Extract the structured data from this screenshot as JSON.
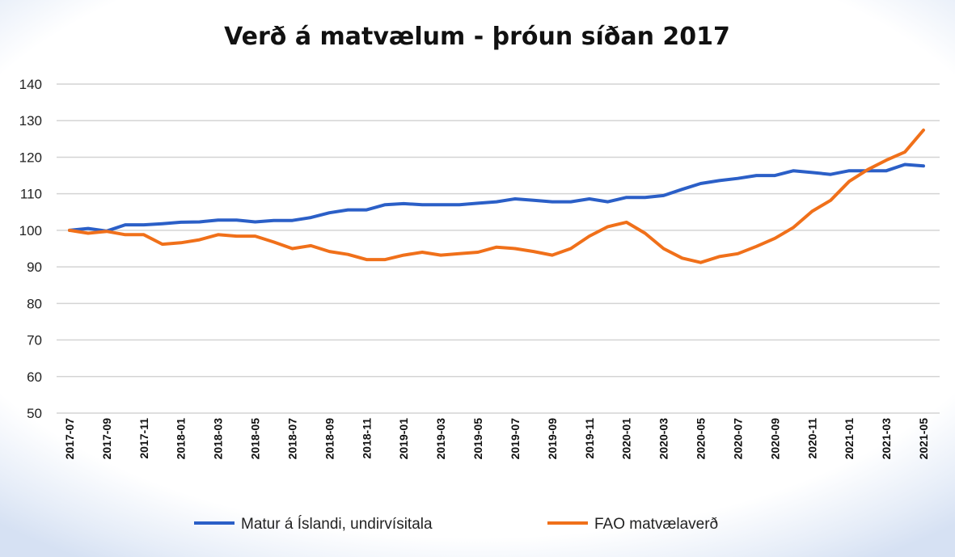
{
  "chart_data": {
    "type": "line",
    "title": "Verð á matvælum  - þróun síðan 2017",
    "xlabel": "",
    "ylabel": "",
    "ylim": [
      50,
      140
    ],
    "yticks": [
      50,
      60,
      70,
      80,
      90,
      100,
      110,
      120,
      130,
      140
    ],
    "grid": true,
    "legend_position": "bottom",
    "x": [
      "2017-07",
      "2017-08",
      "2017-09",
      "2017-10",
      "2017-11",
      "2017-12",
      "2018-01",
      "2018-02",
      "2018-03",
      "2018-04",
      "2018-05",
      "2018-06",
      "2018-07",
      "2018-08",
      "2018-09",
      "2018-10",
      "2018-11",
      "2018-12",
      "2019-01",
      "2019-02",
      "2019-03",
      "2019-04",
      "2019-05",
      "2019-06",
      "2019-07",
      "2019-08",
      "2019-09",
      "2019-10",
      "2019-11",
      "2019-12",
      "2020-01",
      "2020-02",
      "2020-03",
      "2020-04",
      "2020-05",
      "2020-06",
      "2020-07",
      "2020-08",
      "2020-09",
      "2020-10",
      "2020-11",
      "2020-12",
      "2021-01",
      "2021-02",
      "2021-03",
      "2021-04",
      "2021-05"
    ],
    "xtick_labels": [
      "2017-07",
      "2017-09",
      "2017-11",
      "2018-01",
      "2018-03",
      "2018-05",
      "2018-07",
      "2018-09",
      "2018-11",
      "2019-01",
      "2019-03",
      "2019-05",
      "2019-07",
      "2019-09",
      "2019-11",
      "2020-01",
      "2020-03",
      "2020-05",
      "2020-07",
      "2020-09",
      "2020-11",
      "2021-01",
      "2021-03",
      "2021-05"
    ],
    "series": [
      {
        "name": "Matur á Íslandi, undirvísitala",
        "color": "#2b5fc7",
        "values": [
          100,
          100.5,
          99.8,
          101.5,
          101.5,
          101.8,
          102.2,
          102.3,
          102.8,
          102.8,
          102.3,
          102.7,
          102.7,
          103.5,
          104.8,
          105.6,
          105.6,
          107,
          107.3,
          107,
          107,
          107,
          107.4,
          107.8,
          108.6,
          108.2,
          107.8,
          107.8,
          108.6,
          107.8,
          109,
          109,
          109.5,
          111.2,
          112.8,
          113.6,
          114.2,
          115,
          115,
          116.3,
          115.8,
          115.3,
          116.3,
          116.3,
          116.3,
          118,
          117.6
        ]
      },
      {
        "name": "FAO matvælaverð",
        "color": "#f0701a",
        "values": [
          100,
          99.2,
          99.7,
          98.8,
          98.8,
          96.2,
          96.6,
          97.4,
          98.8,
          98.4,
          98.4,
          96.8,
          95,
          95.8,
          94.2,
          93.4,
          92,
          92,
          93.2,
          94,
          93.2,
          93.6,
          94,
          95.4,
          95,
          94.2,
          93.2,
          95,
          98.4,
          101,
          102.2,
          99.2,
          95,
          92.4,
          91.2,
          92.8,
          93.6,
          95.6,
          97.8,
          100.8,
          105.2,
          108.2,
          113.4,
          116.6,
          119.2,
          121.4,
          127.4
        ]
      }
    ]
  }
}
